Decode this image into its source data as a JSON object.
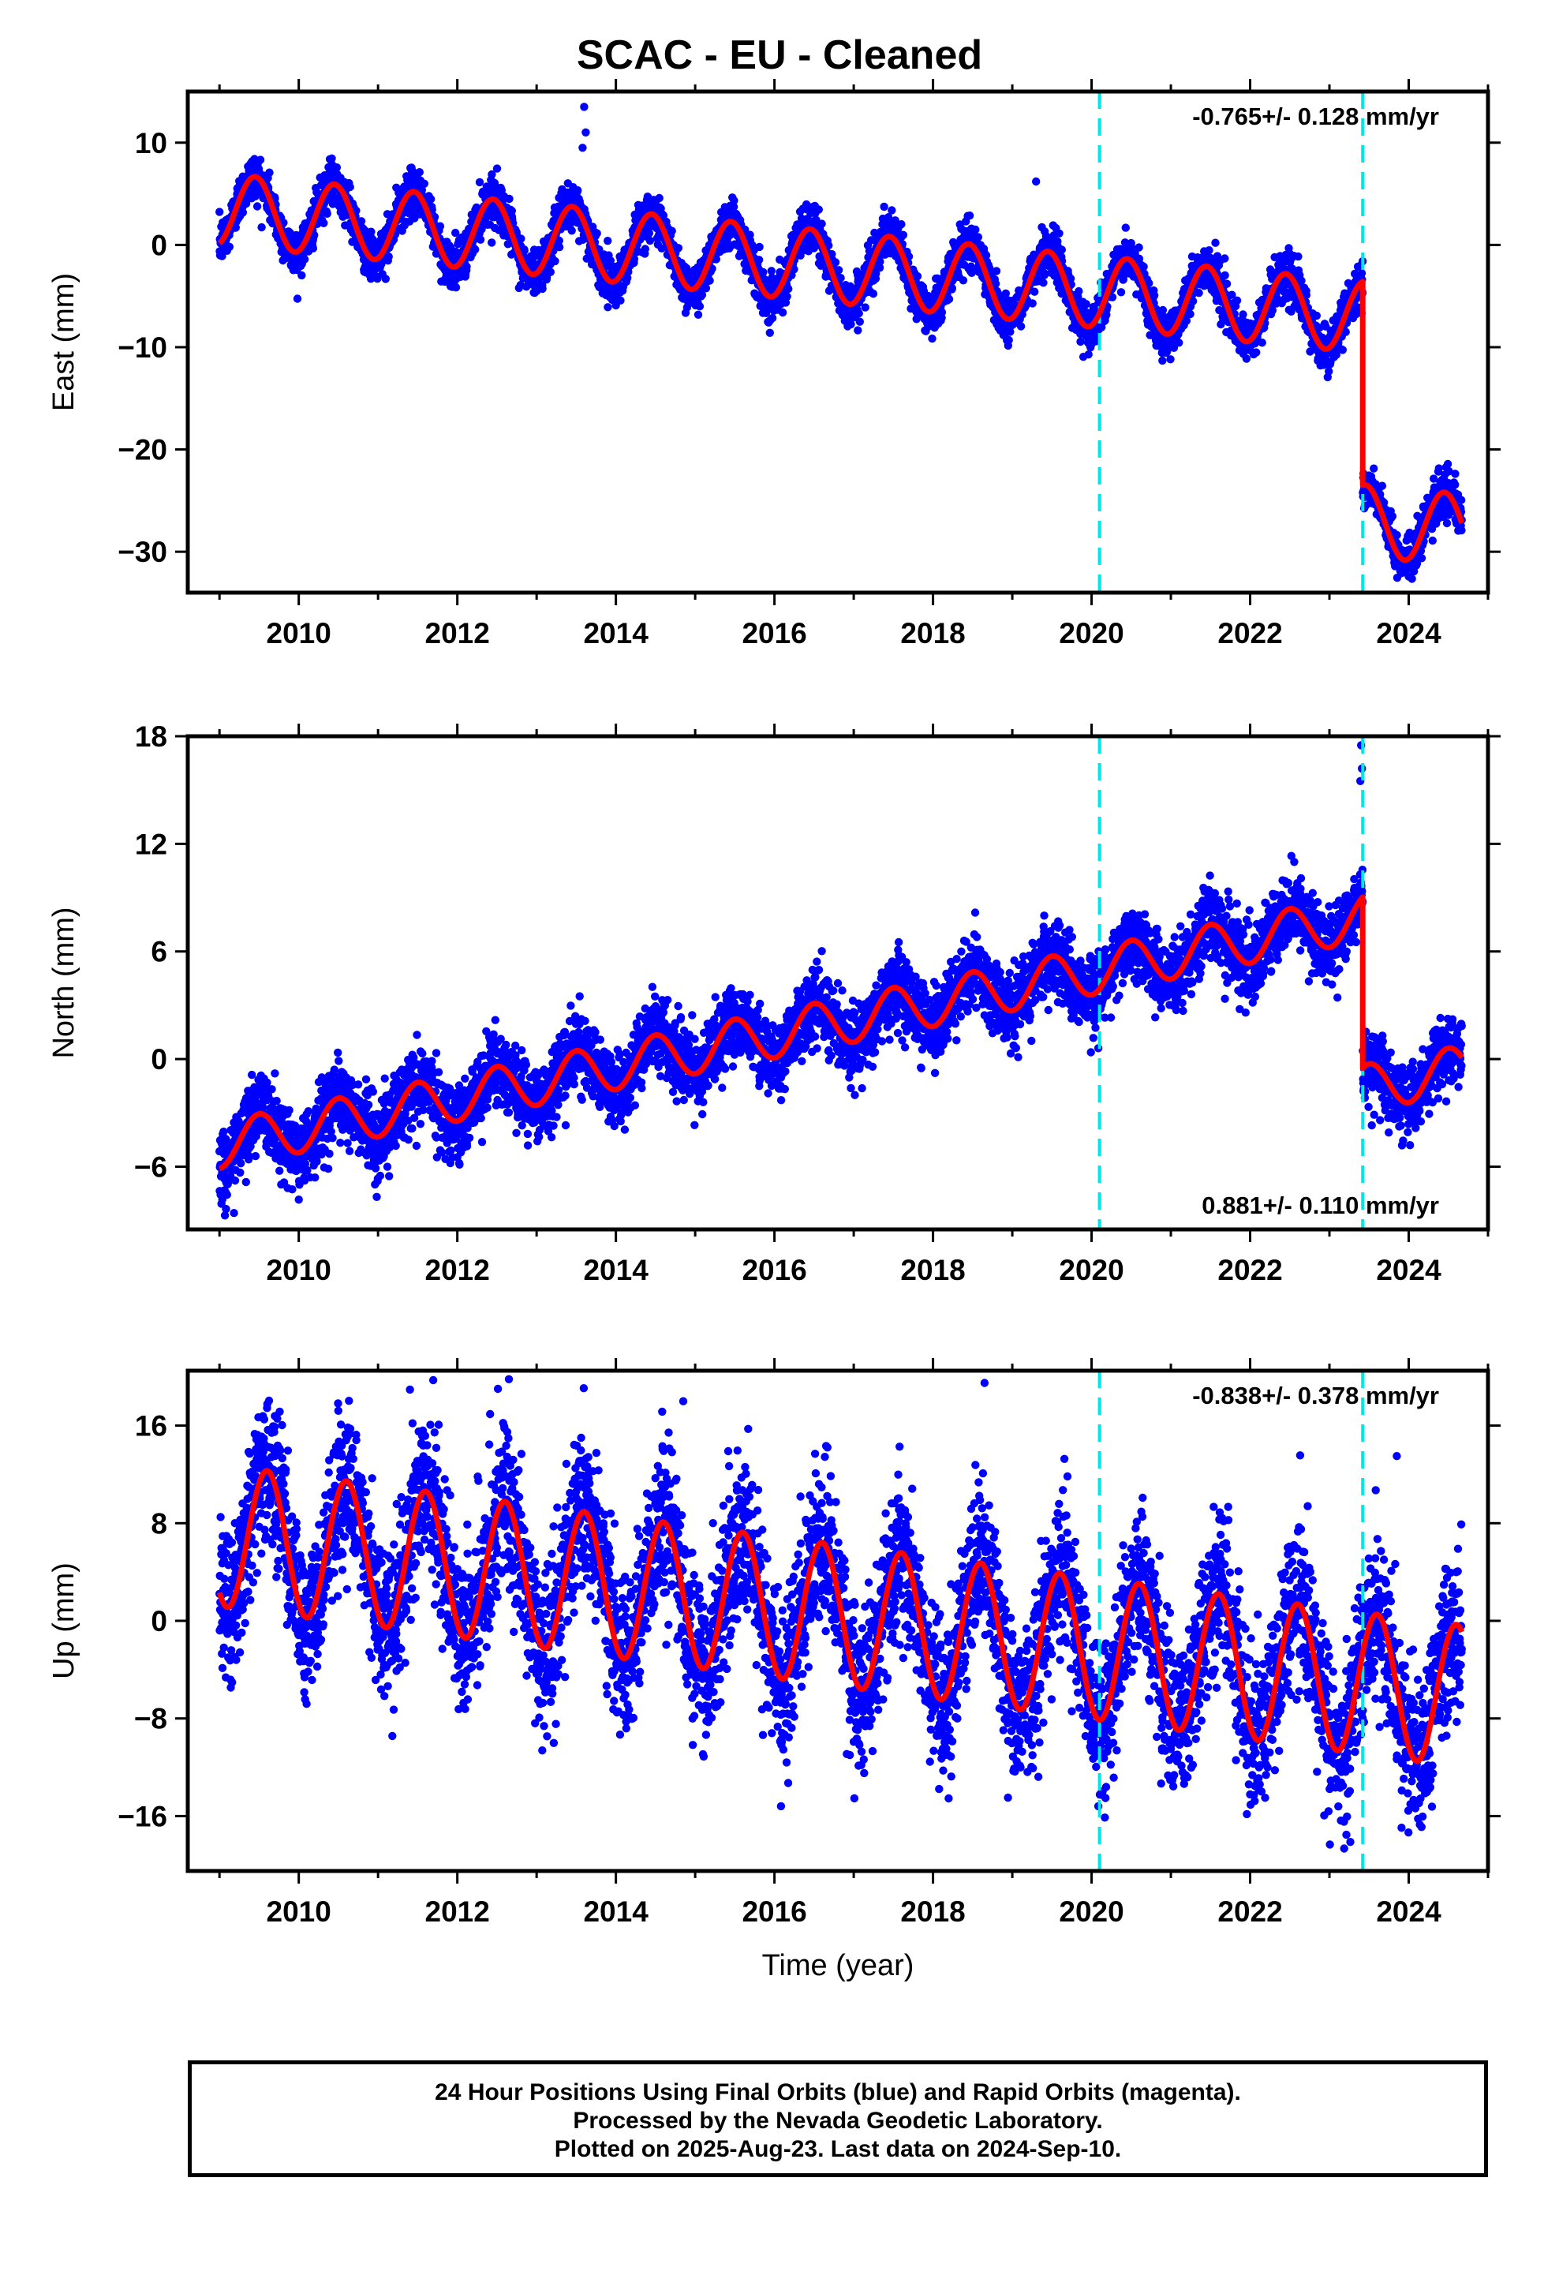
{
  "title": "SCAC  - EU - Cleaned",
  "colors": {
    "data_points": "#0000ff",
    "model_fit": "#ff0000",
    "event_lines": "#00e5e5",
    "frame": "#000000"
  },
  "x_axis_label": "Time (year)",
  "x_ticks": [
    "2010",
    "2012",
    "2014",
    "2016",
    "2018",
    "2020",
    "2022",
    "2024"
  ],
  "chart_data": [
    {
      "type": "scatter",
      "component": "East",
      "ylabel": "East (mm)",
      "xlim": [
        2008.6,
        2025.0
      ],
      "ylim": [
        -34,
        15
      ],
      "yticks": [
        10,
        0,
        -10,
        -20,
        -30
      ],
      "ytick_labels": [
        "10",
        "0",
        "−10",
        "−20",
        "−30"
      ],
      "rate_label": "-0.765+/- 0.128 mm/yr",
      "rate_position": "top-right",
      "event_lines_x": [
        2020.1,
        2023.42
      ],
      "step": {
        "at": 2023.42,
        "before": -1.8,
        "after": -23.5
      },
      "model": {
        "start": 2009.0,
        "end": 2024.67,
        "offset_at_start": 3.5,
        "slope": -0.73,
        "amplitude": 3.5,
        "phase_peak": 0.45,
        "semi_annual_amplitude": 0
      },
      "scatter": {
        "noise": 1.1,
        "outliers": [
          [
            2013.6,
            13.5
          ],
          [
            2013.62,
            11.0
          ],
          [
            2013.58,
            9.5
          ],
          [
            2019.3,
            6.2
          ]
        ]
      }
    },
    {
      "type": "scatter",
      "component": "North",
      "ylabel": "North (mm)",
      "xlim": [
        2008.6,
        2025.0
      ],
      "ylim": [
        -9.5,
        18
      ],
      "yticks": [
        18,
        12,
        6,
        0,
        -6
      ],
      "ytick_labels": [
        "18",
        "12",
        "6",
        "0",
        "−6"
      ],
      "rate_label": "0.881+/- 0.110 mm/yr",
      "rate_position": "bottom-right",
      "event_lines_x": [
        2020.1,
        2023.42
      ],
      "step": {
        "at": 2023.42,
        "before": 8.8,
        "after": -0.5
      },
      "model": {
        "start": 2009.0,
        "end": 2024.67,
        "offset_at_start": -4.8,
        "slope": 0.88,
        "amplitude": 1.3,
        "phase_peak": 0.5,
        "semi_annual_amplitude": 0
      },
      "scatter": {
        "noise": 1.0,
        "outliers": [
          [
            2023.4,
            17.5
          ],
          [
            2023.41,
            16.2
          ],
          [
            2023.39,
            15.5
          ]
        ]
      }
    },
    {
      "type": "scatter",
      "component": "Up",
      "ylabel": "Up (mm)",
      "xlim": [
        2008.6,
        2025.0
      ],
      "ylim": [
        -20.5,
        20.5
      ],
      "yticks": [
        16,
        8,
        0,
        -8,
        -16
      ],
      "ytick_labels": [
        "16",
        "8",
        "0",
        "−8",
        "−16"
      ],
      "rate_label": "-0.838+/- 0.378 mm/yr",
      "rate_position": "top-right",
      "event_lines_x": [
        2020.1,
        2023.42
      ],
      "step": null,
      "model": {
        "start": 2009.0,
        "end": 2024.67,
        "offset_at_start": 7.0,
        "slope": -0.84,
        "amplitude": 5.8,
        "phase_peak": 0.6,
        "semi_annual_amplitude": 0
      },
      "scatter": {
        "noise": 3.2,
        "outliers": [
          [
            2012.65,
            19.8
          ],
          [
            2018.65,
            19.5
          ],
          [
            2014.85,
            18.0
          ],
          [
            2023.85,
            13.5
          ]
        ]
      }
    }
  ],
  "footer": {
    "line1": "24 Hour Positions Using Final Orbits (blue) and Rapid Orbits (magenta).",
    "line2": "Processed by the Nevada Geodetic Laboratory.",
    "line3": "Plotted on 2025-Aug-23. Last data on 2024-Sep-10."
  }
}
